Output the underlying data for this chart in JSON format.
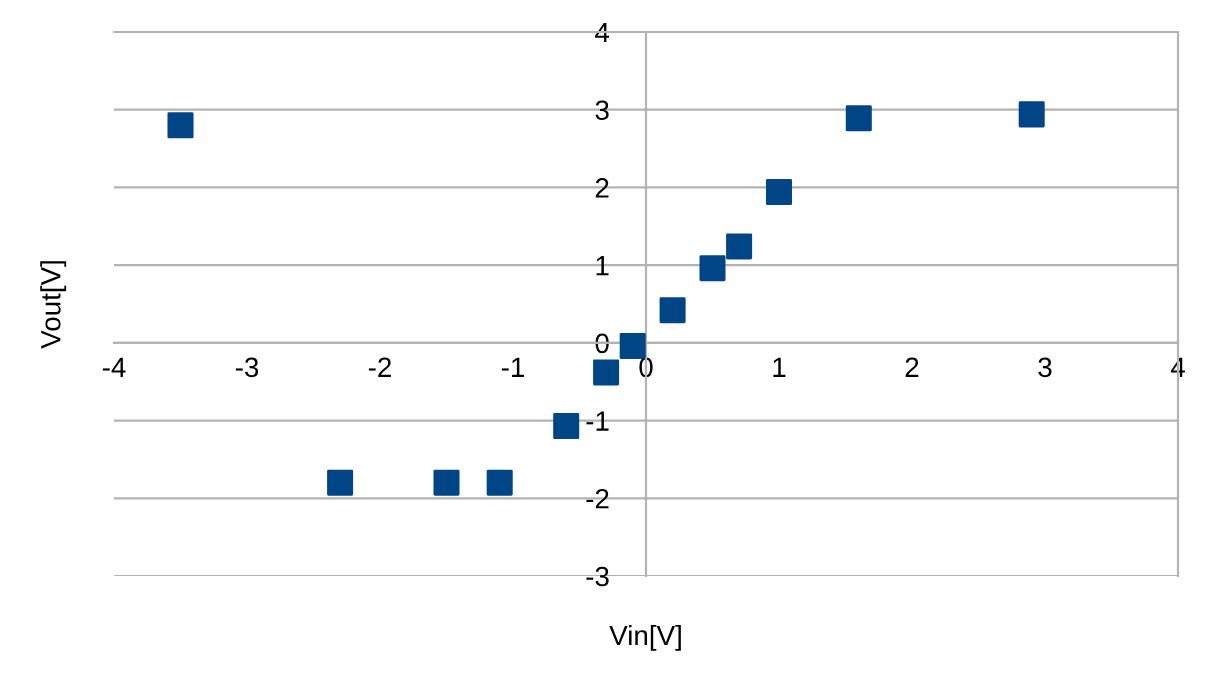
{
  "chart_data": {
    "type": "scatter",
    "xlabel": "Vin[V]",
    "ylabel": "Vout[V]",
    "x": [
      -3.5,
      -2.3,
      -1.5,
      -1.1,
      -0.6,
      -0.3,
      -0.1,
      0.2,
      0.5,
      0.7,
      1.0,
      1.6,
      2.9
    ],
    "series": [
      {
        "color": "#004586",
        "values": [
          2.8,
          -1.8,
          -1.8,
          -1.8,
          -1.07,
          -0.38,
          -0.04,
          0.42,
          0.96,
          1.24,
          1.94,
          2.89,
          2.94
        ]
      }
    ],
    "xlim": [
      -4,
      4
    ],
    "ylim": [
      -3,
      4
    ],
    "xticks": [
      -4,
      -3,
      -2,
      -1,
      0,
      1,
      2,
      3,
      4
    ],
    "yticks": [
      -3,
      -2,
      -1,
      0,
      1,
      2,
      3,
      4
    ],
    "grid": "y",
    "marker": "square",
    "legend": false
  }
}
